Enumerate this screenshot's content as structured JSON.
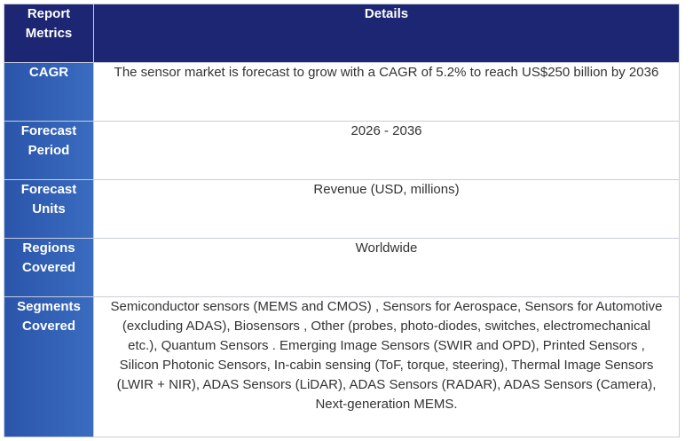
{
  "header": {
    "metric_label": "Report\nMetrics",
    "details_label": "Details"
  },
  "rows": [
    {
      "key": "CAGR",
      "value": "The sensor market is forecast to grow with a CAGR of 5.2% to reach US$250 billion by 2036"
    },
    {
      "key": "Forecast Period",
      "value": "2026 - 2036"
    },
    {
      "key": "Forecast Units",
      "value": "Revenue (USD, millions)"
    },
    {
      "key": "Regions Covered",
      "value": "Worldwide"
    },
    {
      "key": "Segments Covered",
      "value": "Semiconductor sensors (MEMS and CMOS) , Sensors for Aerospace, Sensors for Automotive (excluding ADAS), Biosensors , Other (probes, photo-diodes, switches, electromechanical etc.), Quantum Sensors . Emerging Image Sensors (SWIR and OPD), Printed Sensors , Silicon Photonic Sensors, In-cabin sensing (ToF, torque, steering), Thermal Image Sensors (LWIR + NIR), ADAS Sensors (LiDAR), ADAS Sensors (RADAR), ADAS Sensors (Camera), Next-generation MEMS."
    }
  ],
  "colors": {
    "header_bg": "#1c2672",
    "key_bg": "#2f5fb5",
    "text": "#333333",
    "border": "#c9cede"
  }
}
